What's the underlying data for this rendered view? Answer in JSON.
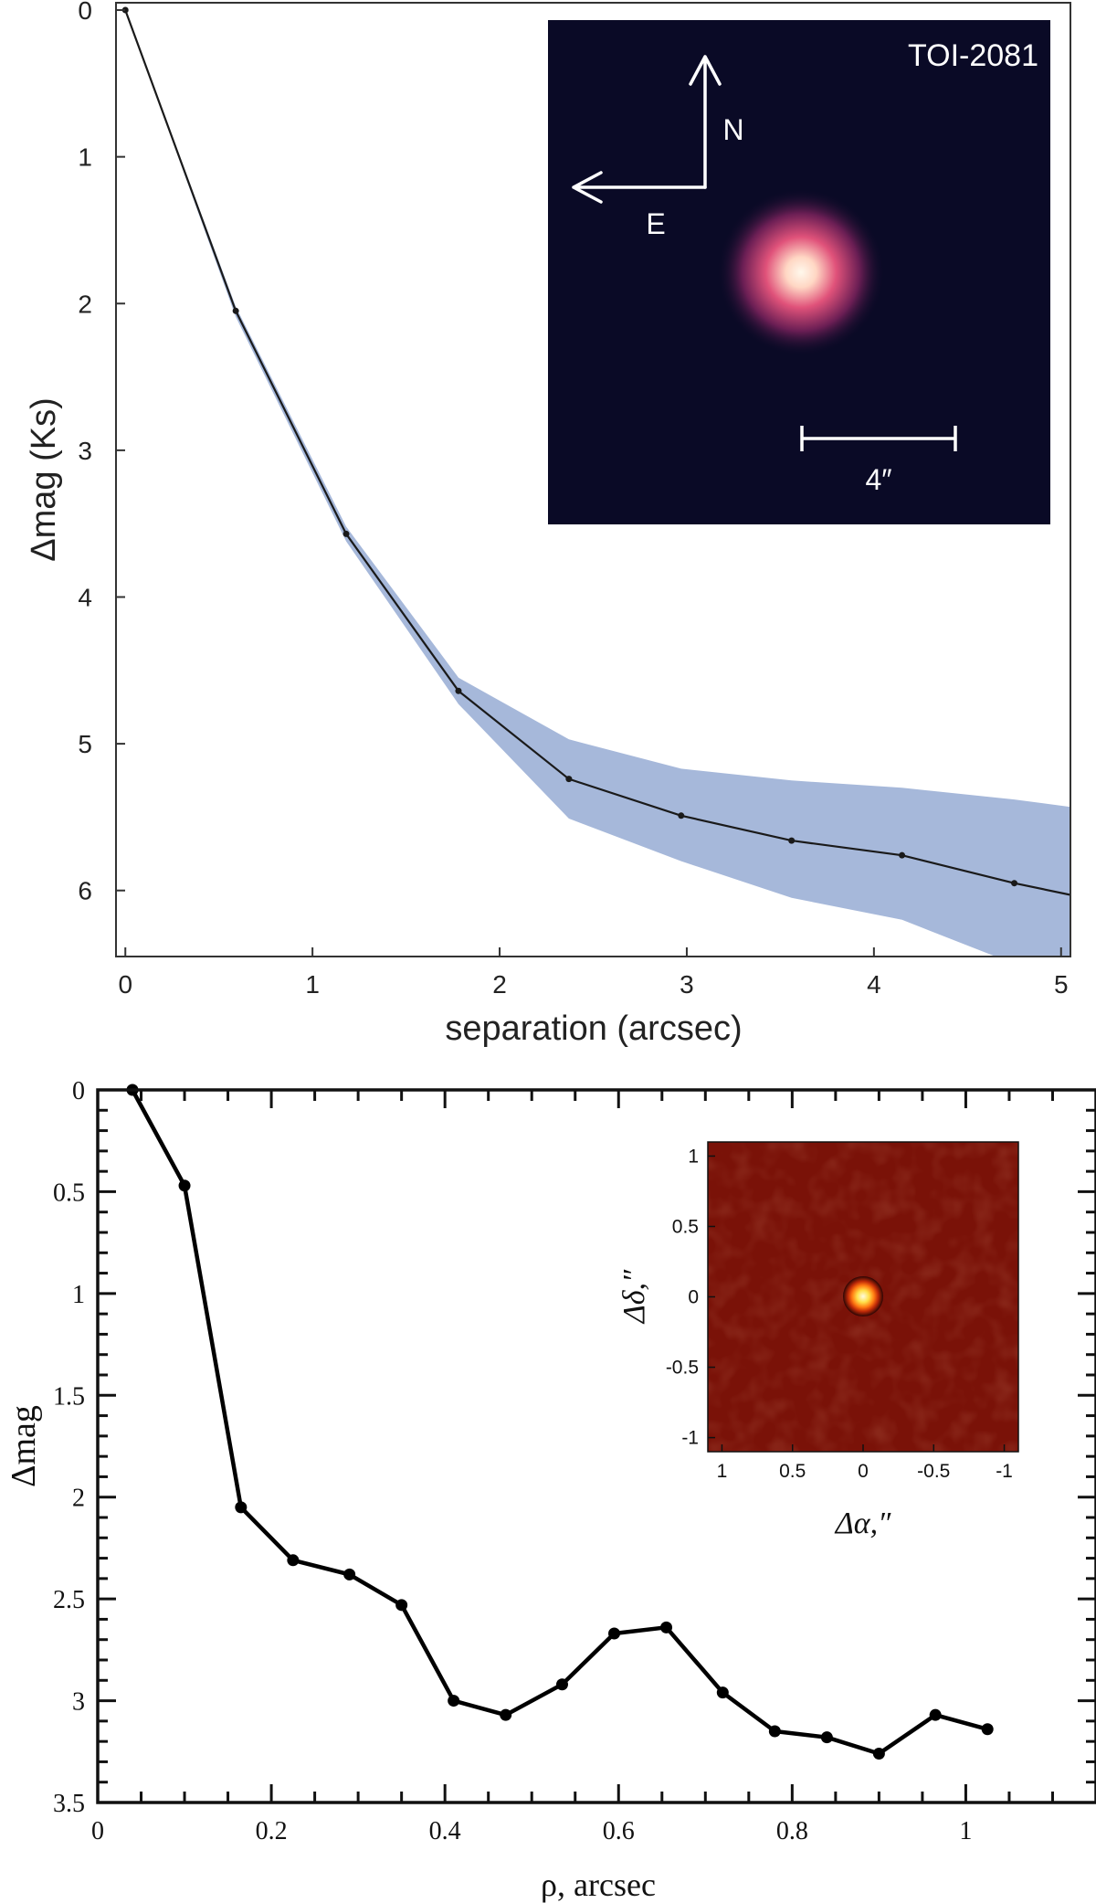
{
  "chart_data": [
    {
      "type": "line",
      "xlabel": "separation (arcsec)",
      "ylabel": "Δmag (Ks)",
      "xlim": [
        -0.05,
        5.05
      ],
      "ylim": [
        6.45,
        -0.05
      ],
      "y_inverted": true,
      "xticks": [
        "0",
        "1",
        "2",
        "3",
        "4",
        "5"
      ],
      "yticks": [
        "0",
        "1",
        "2",
        "3",
        "4",
        "5",
        "6"
      ],
      "series": [
        {
          "x": [
            0.0,
            0.59,
            1.18,
            1.78,
            2.37,
            2.97,
            3.56,
            4.15,
            4.75,
            5.05
          ],
          "y": [
            0.0,
            2.05,
            3.57,
            4.64,
            5.24,
            5.49,
            5.66,
            5.76,
            5.95,
            6.03
          ]
        }
      ],
      "band": {
        "x": [
          0.0,
          0.59,
          1.18,
          1.78,
          2.37,
          2.97,
          3.56,
          4.15,
          4.75,
          5.05
        ],
        "lower": [
          0.0,
          2.02,
          3.52,
          4.55,
          4.97,
          5.17,
          5.25,
          5.3,
          5.38,
          5.43
        ],
        "upper": [
          0.0,
          2.09,
          3.62,
          4.73,
          5.51,
          5.8,
          6.05,
          6.2,
          6.5,
          6.6
        ]
      },
      "inset": {
        "label": "TOI-2081",
        "compass": [
          "N",
          "E"
        ],
        "scale_bar": "4″",
        "background": "#0a0a26",
        "star_core": "#fff8ec",
        "star_mid": "#e0527a",
        "star_outer": "#6a1e54"
      },
      "colors": {
        "line": "#1a1a1a",
        "band": "#a6b8da"
      }
    },
    {
      "type": "line",
      "xlabel": "ρ, arcsec",
      "ylabel": "Δmag",
      "xlim": [
        0,
        1.15
      ],
      "ylim": [
        3.5,
        0
      ],
      "y_inverted": true,
      "xticks": [
        "0",
        "0.2",
        "0.4",
        "0.6",
        "0.8",
        "1"
      ],
      "yticks": [
        "0",
        "0.5",
        "1",
        "1.5",
        "2",
        "2.5",
        "3",
        "3.5"
      ],
      "series": [
        {
          "x": [
            0.04,
            0.1,
            0.165,
            0.225,
            0.29,
            0.35,
            0.41,
            0.47,
            0.535,
            0.595,
            0.655,
            0.72,
            0.78,
            0.84,
            0.9,
            0.965,
            1.025
          ],
          "y": [
            0.0,
            0.47,
            2.05,
            2.31,
            2.38,
            2.53,
            3.0,
            3.07,
            2.92,
            2.67,
            2.64,
            2.96,
            3.15,
            3.18,
            3.26,
            3.07,
            3.14
          ]
        }
      ],
      "inset": {
        "xlabel": "Δα,″",
        "ylabel": "Δδ,″",
        "xticks": [
          "1",
          "0.5",
          "0",
          "-0.5",
          "-1"
        ],
        "yticks": [
          "1",
          "0.5",
          "0",
          "-0.5",
          "-1"
        ],
        "background": "#7a1208",
        "star_core": "#fffbe0",
        "star_ring": "#2a0504"
      },
      "colors": {
        "line": "#000000"
      }
    }
  ]
}
